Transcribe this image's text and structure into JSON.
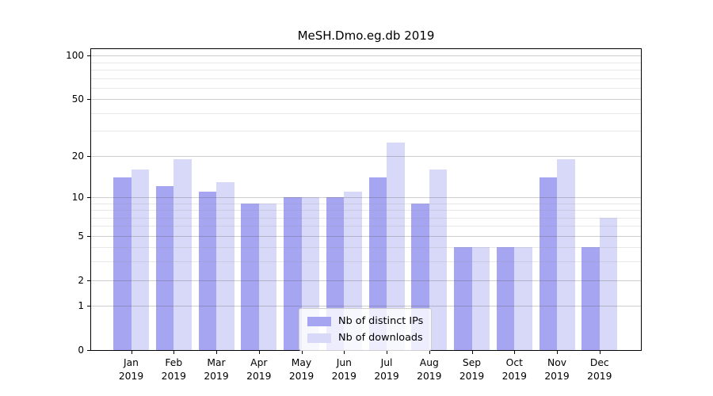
{
  "chart_data": {
    "type": "bar",
    "title": "MeSH.Dmo.eg.db 2019",
    "year": "2019",
    "categories": [
      "Jan",
      "Feb",
      "Mar",
      "Apr",
      "May",
      "Jun",
      "Jul",
      "Aug",
      "Sep",
      "Oct",
      "Nov",
      "Dec"
    ],
    "series": [
      {
        "name": "Nb of distinct IPs",
        "color": "#a5a5f2",
        "values": [
          14,
          12,
          11,
          9,
          10,
          10,
          14,
          9,
          4,
          4,
          14,
          4
        ]
      },
      {
        "name": "Nb of downloads",
        "color": "#d8d8f8",
        "values": [
          16,
          19,
          13,
          9,
          10,
          11,
          25,
          16,
          4,
          4,
          19,
          7
        ]
      }
    ],
    "y_scale": "log1p",
    "ylim": [
      0,
      111
    ],
    "y_ticks": [
      0,
      1,
      2,
      5,
      10,
      20,
      50,
      100
    ],
    "y_minor_gridlines": [
      3,
      4,
      6,
      7,
      8,
      9,
      30,
      40,
      60,
      70,
      80,
      90
    ],
    "grid": true,
    "legend_position": "lower center",
    "axis_color": "#000000",
    "major_grid_color": "#cccccc",
    "minor_grid_color": "#ececec"
  }
}
